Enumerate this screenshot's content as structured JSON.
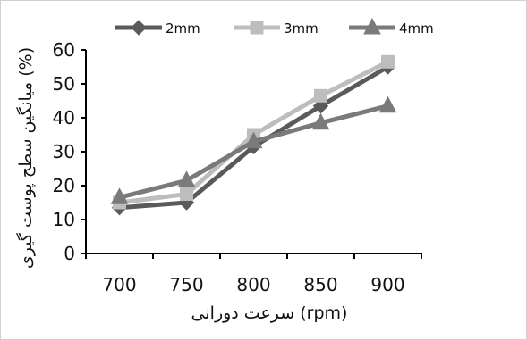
{
  "chart_data": {
    "type": "line",
    "categories": [
      "700",
      "750",
      "800",
      "850",
      "900"
    ],
    "series": [
      {
        "name": "2mm",
        "values": [
          13.5,
          15,
          31.5,
          43.5,
          55
        ],
        "color": "#5a5a5a",
        "marker": "diamond"
      },
      {
        "name": "3mm",
        "values": [
          15,
          17.5,
          35,
          46.5,
          56.5
        ],
        "color": "#bdbdbd",
        "marker": "square"
      },
      {
        "name": "4mm",
        "values": [
          16.5,
          21.5,
          33,
          38.5,
          43.5
        ],
        "color": "#7a7a7a",
        "marker": "triangle"
      }
    ],
    "xlabel": "سرعت دورانی  (rpm)",
    "ylabel": "میانگین سطح پوست گیری  (%)",
    "ylim": [
      0,
      60
    ],
    "yticks": [
      "0",
      "10",
      "20",
      "30",
      "40",
      "50",
      "60"
    ],
    "legend_position": "top",
    "grid": false
  }
}
